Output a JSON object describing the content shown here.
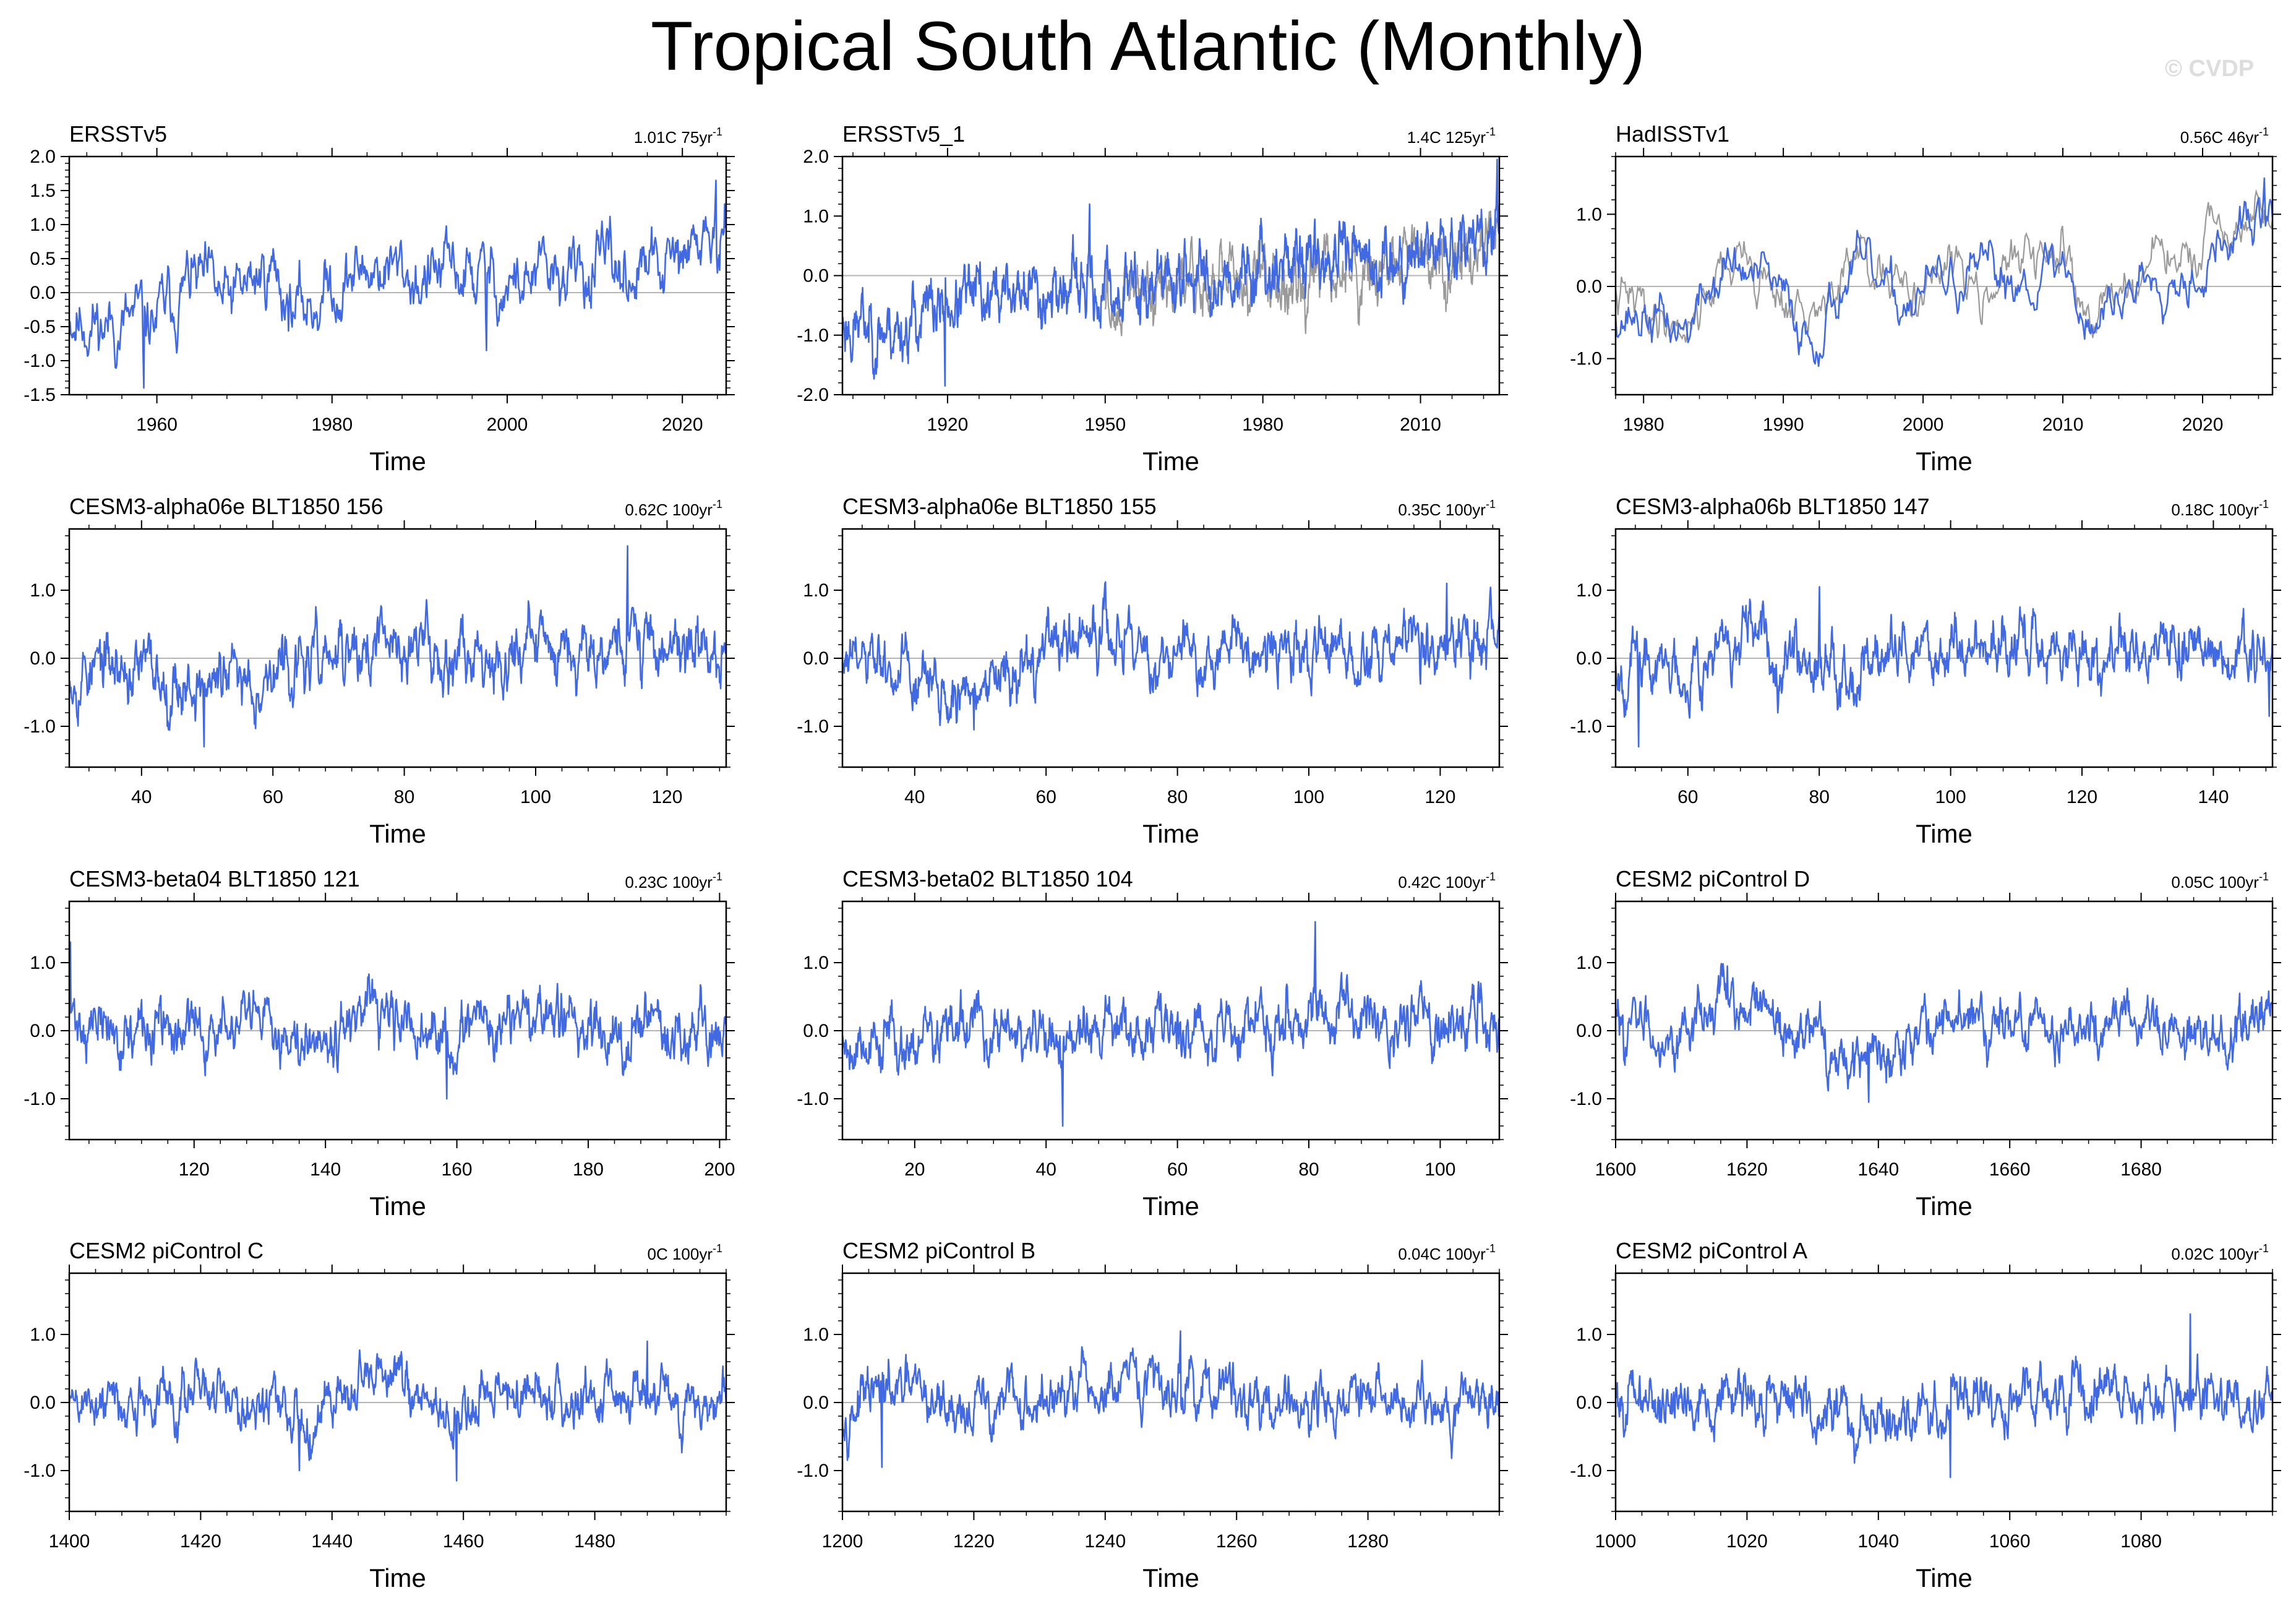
{
  "title": "Tropical South Atlantic (Monthly)",
  "watermark": "© CVDP",
  "colors": {
    "series": "#4169e1",
    "reference": "#9a9a9a",
    "axis": "#000000",
    "zero_line": "#b5b5b5"
  },
  "chart_data": [
    {
      "type": "line",
      "title": "ERSSTv5",
      "trend_value": "1.01C",
      "trend_period": "75yr",
      "xlabel": "Time",
      "ylabel": "",
      "xlim": [
        1950,
        2025
      ],
      "ylim": [
        -1.5,
        2.0
      ],
      "xticks": [
        1960,
        1980,
        2000,
        2020
      ],
      "xtick_labels": [
        "1960",
        "1980",
        "2000",
        "2020"
      ],
      "yticks": [
        -1.5,
        -1.0,
        -0.5,
        0.0,
        0.5,
        1.0,
        1.5,
        2.0
      ],
      "ytick_labels": [
        "-1.5",
        "-1.0",
        "-0.5",
        "0.0",
        "0.5",
        "1.0",
        "1.5",
        "2.0"
      ],
      "months": 900,
      "anchors": [
        [
          1950,
          -0.3
        ],
        [
          1955,
          -0.5
        ],
        [
          1960,
          -0.4
        ],
        [
          1964,
          0.2
        ],
        [
          1968,
          -0.2
        ],
        [
          1973,
          0.4
        ],
        [
          1976,
          -0.3
        ],
        [
          1980,
          0.1
        ],
        [
          1985,
          0.4
        ],
        [
          1990,
          0.2
        ],
        [
          1995,
          0.3
        ],
        [
          2000,
          0.1
        ],
        [
          2005,
          0.2
        ],
        [
          2010,
          0.3
        ],
        [
          2015,
          0.3
        ],
        [
          2020,
          0.4
        ],
        [
          2023,
          0.9
        ],
        [
          2024.5,
          0.5
        ]
      ],
      "amplitude": 0.42,
      "spikes": [
        [
          2023.8,
          1.65
        ],
        [
          1958.5,
          -1.4
        ],
        [
          1997.6,
          -0.85
        ]
      ],
      "seed": 11,
      "reference_series": null
    },
    {
      "type": "line",
      "title": "ERSSTv5_1",
      "trend_value": "1.4C",
      "trend_period": "125yr",
      "xlabel": "Time",
      "ylabel": "",
      "xlim": [
        1900,
        2025
      ],
      "ylim": [
        -2.0,
        2.0
      ],
      "xticks": [
        1920,
        1950,
        1980,
        2010
      ],
      "xtick_labels": [
        "1920",
        "1950",
        "1980",
        "2010"
      ],
      "yticks": [
        -2.0,
        -1.0,
        0.0,
        1.0,
        2.0
      ],
      "ytick_labels": [
        "-2.0",
        "-1.0",
        "0.0",
        "1.0",
        "2.0"
      ],
      "months": 1500,
      "anchors": [
        [
          1900,
          -0.8
        ],
        [
          1910,
          -0.9
        ],
        [
          1920,
          -0.5
        ],
        [
          1930,
          -0.3
        ],
        [
          1940,
          -0.2
        ],
        [
          1950,
          -0.3
        ],
        [
          1960,
          -0.1
        ],
        [
          1970,
          0.0
        ],
        [
          1980,
          0.2
        ],
        [
          1990,
          0.3
        ],
        [
          2000,
          0.2
        ],
        [
          2010,
          0.5
        ],
        [
          2020,
          0.5
        ],
        [
          2025,
          0.8
        ]
      ],
      "amplitude": 0.45,
      "spikes": [
        [
          1919.5,
          -1.85
        ],
        [
          2024.6,
          1.95
        ],
        [
          1947,
          1.2
        ]
      ],
      "seed": 23,
      "reference_series": {
        "start": 1950,
        "offset": -0.2,
        "seed": 29
      }
    },
    {
      "type": "line",
      "title": "HadISSTv1",
      "trend_value": "0.56C",
      "trend_period": "46yr",
      "xlabel": "Time",
      "ylabel": "",
      "xlim": [
        1978,
        2025
      ],
      "ylim": [
        -1.5,
        1.8
      ],
      "xticks": [
        1980,
        1990,
        2000,
        2010,
        2020
      ],
      "xtick_labels": [
        "1980",
        "1990",
        "2000",
        "2010",
        "2020"
      ],
      "yticks": [
        -1.0,
        0.0,
        1.0
      ],
      "ytick_labels": [
        "-1.0",
        "0.0",
        "1.0"
      ],
      "months": 564,
      "anchors": [
        [
          1978,
          -0.3
        ],
        [
          1983,
          -0.6
        ],
        [
          1986,
          0.3
        ],
        [
          1989,
          0.0
        ],
        [
          1992,
          -0.7
        ],
        [
          1995,
          0.3
        ],
        [
          1998,
          -0.3
        ],
        [
          2000,
          0.0
        ],
        [
          2005,
          0.1
        ],
        [
          2010,
          0.3
        ],
        [
          2012,
          -0.5
        ],
        [
          2016,
          0.2
        ],
        [
          2020,
          0.3
        ],
        [
          2022,
          0.6
        ],
        [
          2024,
          0.9
        ]
      ],
      "amplitude": 0.32,
      "spikes": [
        [
          2024.4,
          1.5
        ]
      ],
      "seed": 37,
      "reference_series": {
        "start": 1978,
        "offset": 0.1,
        "seed": 41
      }
    },
    {
      "type": "line",
      "title": "CESM3-alpha06e BLT1850 156",
      "trend_value": "0.62C",
      "trend_period": "100yr",
      "xlabel": "Time",
      "ylabel": "",
      "xlim": [
        29,
        129
      ],
      "ylim": [
        -1.6,
        1.9
      ],
      "xticks": [
        40,
        60,
        80,
        100,
        120
      ],
      "xtick_labels": [
        "40",
        "60",
        "80",
        "100",
        "120"
      ],
      "yticks": [
        -1.0,
        0.0,
        1.0
      ],
      "ytick_labels": [
        "-1.0",
        "0.0",
        "1.0"
      ],
      "months": 1200,
      "anchors": [
        [
          29,
          -0.1
        ],
        [
          40,
          -0.2
        ],
        [
          50,
          -0.4
        ],
        [
          60,
          -0.2
        ],
        [
          70,
          0.0
        ],
        [
          80,
          0.2
        ],
        [
          90,
          0.1
        ],
        [
          100,
          0.2
        ],
        [
          110,
          0.3
        ],
        [
          120,
          0.2
        ],
        [
          129,
          0.1
        ]
      ],
      "amplitude": 0.4,
      "spikes": [
        [
          114,
          1.65
        ],
        [
          49.5,
          -1.3
        ]
      ],
      "seed": 53,
      "reference_series": null
    },
    {
      "type": "line",
      "title": "CESM3-alpha06e BLT1850 155",
      "trend_value": "0.35C",
      "trend_period": "100yr",
      "xlabel": "Time",
      "ylabel": "",
      "xlim": [
        29,
        129
      ],
      "ylim": [
        -1.6,
        1.9
      ],
      "xticks": [
        40,
        60,
        80,
        100,
        120
      ],
      "xtick_labels": [
        "40",
        "60",
        "80",
        "100",
        "120"
      ],
      "yticks": [
        -1.0,
        0.0,
        1.0
      ],
      "ytick_labels": [
        "-1.0",
        "0.0",
        "1.0"
      ],
      "months": 1200,
      "anchors": [
        [
          29,
          -0.1
        ],
        [
          40,
          -0.3
        ],
        [
          48,
          -0.6
        ],
        [
          55,
          -0.1
        ],
        [
          65,
          0.3
        ],
        [
          75,
          0.1
        ],
        [
          85,
          0.1
        ],
        [
          95,
          0.1
        ],
        [
          105,
          0.0
        ],
        [
          115,
          0.1
        ],
        [
          129,
          0.2
        ]
      ],
      "amplitude": 0.38,
      "spikes": [
        [
          121,
          1.1
        ],
        [
          49,
          -1.05
        ]
      ],
      "seed": 61,
      "reference_series": null
    },
    {
      "type": "line",
      "title": "CESM3-alpha06b BLT1850 147",
      "trend_value": "0.18C",
      "trend_period": "100yr",
      "xlabel": "Time",
      "ylabel": "",
      "xlim": [
        49,
        149
      ],
      "ylim": [
        -1.6,
        1.9
      ],
      "xticks": [
        60,
        80,
        100,
        120,
        140
      ],
      "xtick_labels": [
        "60",
        "80",
        "100",
        "120",
        "140"
      ],
      "yticks": [
        -1.0,
        0.0,
        1.0
      ],
      "ytick_labels": [
        "-1.0",
        "0.0",
        "1.0"
      ],
      "months": 1200,
      "anchors": [
        [
          49,
          0.0
        ],
        [
          55,
          -0.2
        ],
        [
          65,
          0.1
        ],
        [
          75,
          0.2
        ],
        [
          85,
          -0.1
        ],
        [
          95,
          0.1
        ],
        [
          105,
          0.2
        ],
        [
          115,
          0.1
        ],
        [
          125,
          0.0
        ],
        [
          135,
          0.2
        ],
        [
          149,
          -0.1
        ]
      ],
      "amplitude": 0.38,
      "spikes": [
        [
          52.5,
          -1.3
        ],
        [
          148.5,
          -0.85
        ],
        [
          80,
          1.05
        ]
      ],
      "seed": 67,
      "reference_series": null
    },
    {
      "type": "line",
      "title": "CESM3-beta04 BLT1850 121",
      "trend_value": "0.23C",
      "trend_period": "100yr",
      "xlabel": "Time",
      "ylabel": "",
      "xlim": [
        101,
        201
      ],
      "ylim": [
        -1.6,
        1.9
      ],
      "xticks": [
        120,
        140,
        160,
        180,
        200
      ],
      "xtick_labels": [
        "120",
        "140",
        "160",
        "180",
        "200"
      ],
      "yticks": [
        -1.0,
        0.0,
        1.0
      ],
      "ytick_labels": [
        "-1.0",
        "0.0",
        "1.0"
      ],
      "months": 1200,
      "anchors": [
        [
          101,
          0.2
        ],
        [
          110,
          -0.1
        ],
        [
          120,
          0.0
        ],
        [
          130,
          0.0
        ],
        [
          140,
          0.1
        ],
        [
          150,
          0.1
        ],
        [
          158,
          -0.2
        ],
        [
          165,
          0.1
        ],
        [
          175,
          0.2
        ],
        [
          185,
          0.0
        ],
        [
          201,
          0.1
        ]
      ],
      "amplitude": 0.36,
      "spikes": [
        [
          101.2,
          1.3
        ],
        [
          158.5,
          -1.0
        ]
      ],
      "seed": 71,
      "reference_series": null
    },
    {
      "type": "line",
      "title": "CESM3-beta02 BLT1850 104",
      "trend_value": "0.42C",
      "trend_period": "100yr",
      "xlabel": "Time",
      "ylabel": "",
      "xlim": [
        9,
        109
      ],
      "ylim": [
        -1.6,
        1.9
      ],
      "xticks": [
        20,
        40,
        60,
        80,
        100
      ],
      "xtick_labels": [
        "20",
        "40",
        "60",
        "80",
        "100"
      ],
      "yticks": [
        -1.0,
        0.0,
        1.0
      ],
      "ytick_labels": [
        "-1.0",
        "0.0",
        "1.0"
      ],
      "months": 1200,
      "anchors": [
        [
          9,
          -0.1
        ],
        [
          20,
          -0.1
        ],
        [
          30,
          0.0
        ],
        [
          40,
          -0.2
        ],
        [
          50,
          0.0
        ],
        [
          60,
          0.1
        ],
        [
          70,
          0.1
        ],
        [
          80,
          0.3
        ],
        [
          90,
          0.2
        ],
        [
          100,
          0.1
        ],
        [
          109,
          0.2
        ]
      ],
      "amplitude": 0.38,
      "spikes": [
        [
          81,
          1.6
        ],
        [
          42.5,
          -1.4
        ]
      ],
      "seed": 79,
      "reference_series": null
    },
    {
      "type": "line",
      "title": "CESM2 piControl D",
      "trend_value": "0.05C",
      "trend_period": "100yr",
      "xlabel": "Time",
      "ylabel": "",
      "xlim": [
        1600,
        1700
      ],
      "ylim": [
        -1.6,
        1.9
      ],
      "xticks": [
        1600,
        1620,
        1640,
        1660,
        1680
      ],
      "xtick_labels": [
        "1600",
        "1620",
        "1640",
        "1660",
        "1680"
      ],
      "yticks": [
        -1.0,
        0.0,
        1.0
      ],
      "ytick_labels": [
        "-1.0",
        "0.0",
        "1.0"
      ],
      "months": 1200,
      "anchors": [
        [
          1600,
          0.1
        ],
        [
          1610,
          0.0
        ],
        [
          1617,
          0.5
        ],
        [
          1625,
          0.0
        ],
        [
          1638,
          -0.4
        ],
        [
          1645,
          0.0
        ],
        [
          1655,
          0.2
        ],
        [
          1665,
          0.1
        ],
        [
          1675,
          0.1
        ],
        [
          1685,
          0.0
        ],
        [
          1700,
          0.1
        ]
      ],
      "amplitude": 0.33,
      "spikes": [
        [
          1638.5,
          -1.05
        ],
        [
          1617,
          0.95
        ]
      ],
      "seed": 83,
      "reference_series": null
    },
    {
      "type": "line",
      "title": "CESM2 piControl C",
      "trend_value": "0C",
      "trend_period": "100yr",
      "xlabel": "Time",
      "ylabel": "",
      "xlim": [
        1400,
        1500
      ],
      "ylim": [
        -1.6,
        1.9
      ],
      "xticks": [
        1400,
        1420,
        1440,
        1460,
        1480
      ],
      "xtick_labels": [
        "1400",
        "1420",
        "1440",
        "1460",
        "1480"
      ],
      "yticks": [
        -1.0,
        0.0,
        1.0
      ],
      "ytick_labels": [
        "-1.0",
        "0.0",
        "1.0"
      ],
      "months": 1200,
      "anchors": [
        [
          1400,
          0.0
        ],
        [
          1410,
          0.0
        ],
        [
          1420,
          0.1
        ],
        [
          1430,
          0.0
        ],
        [
          1435,
          -0.3
        ],
        [
          1440,
          0.1
        ],
        [
          1452,
          0.3
        ],
        [
          1458,
          -0.4
        ],
        [
          1465,
          0.1
        ],
        [
          1475,
          0.1
        ],
        [
          1490,
          0.1
        ],
        [
          1500,
          0.0
        ]
      ],
      "amplitude": 0.33,
      "spikes": [
        [
          1459,
          -1.15
        ],
        [
          1435,
          -1.0
        ],
        [
          1488,
          0.9
        ]
      ],
      "seed": 89,
      "reference_series": null
    },
    {
      "type": "line",
      "title": "CESM2 piControl B",
      "trend_value": "0.04C",
      "trend_period": "100yr",
      "xlabel": "Time",
      "ylabel": "",
      "xlim": [
        1200,
        1300
      ],
      "ylim": [
        -1.6,
        1.9
      ],
      "xticks": [
        1200,
        1220,
        1240,
        1260,
        1280
      ],
      "xtick_labels": [
        "1200",
        "1220",
        "1240",
        "1260",
        "1280"
      ],
      "yticks": [
        -1.0,
        0.0,
        1.0
      ],
      "ytick_labels": [
        "-1.0",
        "0.0",
        "1.0"
      ],
      "months": 1200,
      "anchors": [
        [
          1200,
          0.0
        ],
        [
          1210,
          0.1
        ],
        [
          1220,
          -0.1
        ],
        [
          1230,
          0.0
        ],
        [
          1240,
          0.1
        ],
        [
          1250,
          0.3
        ],
        [
          1260,
          0.1
        ],
        [
          1270,
          0.0
        ],
        [
          1280,
          0.0
        ],
        [
          1290,
          0.1
        ],
        [
          1300,
          0.1
        ]
      ],
      "amplitude": 0.35,
      "spikes": [
        [
          1251.5,
          1.05
        ],
        [
          1206,
          -0.95
        ]
      ],
      "seed": 97,
      "reference_series": null
    },
    {
      "type": "line",
      "title": "CESM2 piControl A",
      "trend_value": "0.02C",
      "trend_period": "100yr",
      "xlabel": "Time",
      "ylabel": "",
      "xlim": [
        1000,
        1100
      ],
      "ylim": [
        -1.6,
        1.9
      ],
      "xticks": [
        1000,
        1020,
        1040,
        1060,
        1080
      ],
      "xtick_labels": [
        "1000",
        "1020",
        "1040",
        "1060",
        "1080"
      ],
      "yticks": [
        -1.0,
        0.0,
        1.0
      ],
      "ytick_labels": [
        "-1.0",
        "0.0",
        "1.0"
      ],
      "months": 1200,
      "anchors": [
        [
          1000,
          0.1
        ],
        [
          1010,
          0.0
        ],
        [
          1020,
          0.1
        ],
        [
          1030,
          0.0
        ],
        [
          1040,
          -0.2
        ],
        [
          1050,
          0.0
        ],
        [
          1060,
          0.1
        ],
        [
          1070,
          0.2
        ],
        [
          1080,
          0.2
        ],
        [
          1090,
          0.0
        ],
        [
          1100,
          -0.1
        ]
      ],
      "amplitude": 0.35,
      "spikes": [
        [
          1087.5,
          1.3
        ],
        [
          1051,
          -1.1
        ]
      ],
      "seed": 101,
      "reference_series": null
    }
  ]
}
